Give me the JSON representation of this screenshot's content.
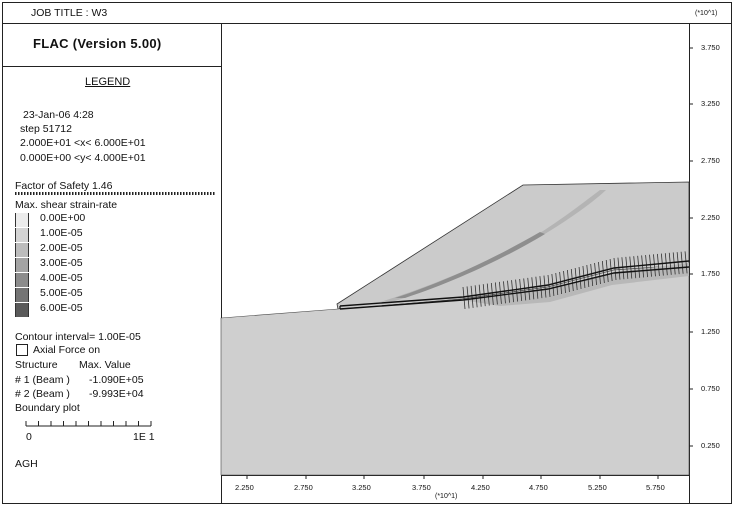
{
  "header": {
    "job_title": "JOB TITLE : W3",
    "program": "FLAC  (Version  5.00)",
    "y_multiplier": "(*10^1)"
  },
  "legend": {
    "heading": "LEGEND",
    "date_time": "23-Jan-06   4:28",
    "step": "step    51712",
    "x_range": "2.000E+01 <x<  6.000E+01",
    "y_range": "0.000E+00 <y<  4.000E+01",
    "factor_of_safety": "Factor of Safety  1.46",
    "strain_title": "Max. shear strain-rate",
    "strain_levels": [
      {
        "label": "0.00E+00",
        "color": "#ececec"
      },
      {
        "label": "1.00E-05",
        "color": "#d4d4d4"
      },
      {
        "label": "2.00E-05",
        "color": "#bdbdbd"
      },
      {
        "label": "3.00E-05",
        "color": "#a4a4a4"
      },
      {
        "label": "4.00E-05",
        "color": "#8c8c8c"
      },
      {
        "label": "5.00E-05",
        "color": "#747474"
      },
      {
        "label": "6.00E-05",
        "color": "#5a5a5a"
      }
    ],
    "contour_interval": "Contour interval=  1.00E-05",
    "axial_force": "Axial Force on",
    "structure_header": "Structure",
    "max_value_header": "Max. Value",
    "beams": [
      {
        "name": "# 1 (Beam )",
        "value": "-1.090E+05"
      },
      {
        "name": "# 2 (Beam )",
        "value": "-9.993E+04"
      }
    ],
    "boundary_plot": "Boundary plot",
    "scale_start": "0",
    "scale_end": "1E  1",
    "footer": "AGH"
  },
  "plot": {
    "y_ticks": [
      "3.750",
      "3.250",
      "2.750",
      "2.250",
      "1.750",
      "1.250",
      "0.750",
      "0.250"
    ],
    "x_ticks": [
      "2.250",
      "2.750",
      "3.250",
      "3.750",
      "4.250",
      "4.750",
      "5.250",
      "5.750"
    ],
    "x_multiplier": "(*10^1)",
    "colors": {
      "fill": "#cfcfcf",
      "band": "#b0b0b0",
      "band_dark": "#8c8c8c",
      "beam": "#222222"
    }
  }
}
